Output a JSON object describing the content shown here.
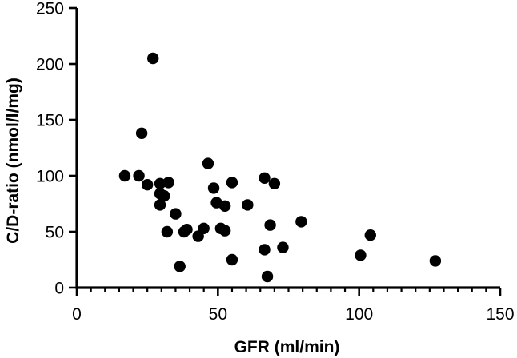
{
  "chart_data": {
    "type": "scatter",
    "xlabel": "GFR (ml/min)",
    "ylabel": "C/D-ratio (nmol/l/mg)",
    "xlim": [
      0,
      150
    ],
    "ylim": [
      0,
      250
    ],
    "xticks": [
      0,
      50,
      100,
      150
    ],
    "yticks": [
      0,
      50,
      100,
      150,
      200,
      250
    ],
    "grid": false,
    "series": [
      {
        "points": [
          [
            27,
            205
          ],
          [
            23,
            138
          ],
          [
            17,
            100
          ],
          [
            22,
            100
          ],
          [
            25,
            92
          ],
          [
            29.5,
            93
          ],
          [
            32.5,
            94
          ],
          [
            29.5,
            84
          ],
          [
            31,
            82
          ],
          [
            29.5,
            74
          ],
          [
            35,
            66
          ],
          [
            32,
            50
          ],
          [
            38,
            50
          ],
          [
            39,
            52
          ],
          [
            36.5,
            19
          ],
          [
            43,
            46
          ],
          [
            45,
            53
          ],
          [
            46.5,
            111
          ],
          [
            48.5,
            89
          ],
          [
            49.5,
            76
          ],
          [
            51,
            53
          ],
          [
            52.5,
            51
          ],
          [
            52.5,
            73
          ],
          [
            55,
            94
          ],
          [
            55,
            25
          ],
          [
            60.5,
            74
          ],
          [
            66.5,
            98
          ],
          [
            70,
            93
          ],
          [
            66.5,
            34
          ],
          [
            68.5,
            56
          ],
          [
            73,
            36
          ],
          [
            79.5,
            59
          ],
          [
            67.5,
            10
          ],
          [
            100.5,
            29
          ],
          [
            104,
            47
          ],
          [
            127,
            24
          ]
        ]
      }
    ]
  }
}
